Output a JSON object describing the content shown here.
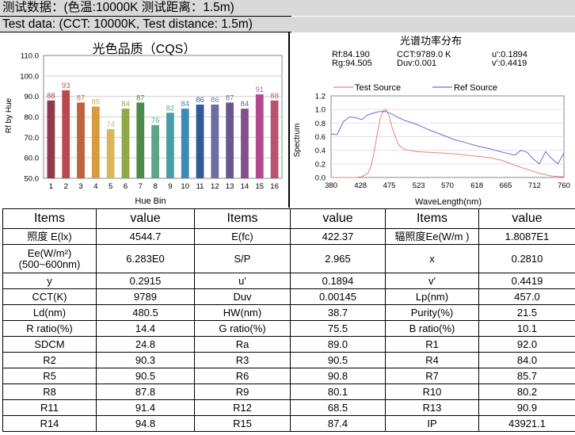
{
  "header": {
    "line1": "测试数据：(色温:10000K 测试距离：1.5m)",
    "line2": "Test data: (CCT: 10000K, Test distance: 1.5m)"
  },
  "cqs_chart": {
    "title": "光色品质（CQS）",
    "ylabel": "Rf by Hue",
    "xlabel": "Hue Bin",
    "chart_data": {
      "type": "bar",
      "categories": [
        "1",
        "2",
        "3",
        "4",
        "5",
        "6",
        "7",
        "8",
        "9",
        "10",
        "11",
        "12",
        "13",
        "14",
        "15",
        "16"
      ],
      "values": [
        88,
        93,
        87,
        85,
        74,
        84,
        87,
        76,
        82,
        84,
        86,
        86,
        87,
        84,
        91,
        88
      ],
      "ylim": [
        50,
        110
      ],
      "yticks": [
        "50.0",
        "60.0",
        "70.0",
        "80.0",
        "90.0",
        "100.0",
        "110.0"
      ],
      "colors": [
        "#8e3a4c",
        "#b84a4f",
        "#c0623e",
        "#d99a3c",
        "#d9b75a",
        "#8fa84a",
        "#4e8a4c",
        "#5ea487",
        "#4c9ca8",
        "#3e8ab7",
        "#335a98",
        "#6d6da3",
        "#67578f",
        "#864e8c",
        "#b4498f",
        "#b7536e"
      ],
      "label_colors": [
        "#b04a4a",
        "#d9533a",
        "#c8713f",
        "#e8a33a",
        "#d9b05a",
        "#8fa84a",
        "#4e8a4c",
        "#5ea487",
        "#4ca3b2",
        "#3e8ab7",
        "#3364a8",
        "#6d7aa8",
        "#6e6aa6",
        "#864e8c",
        "#c35aa8",
        "#c25a7e"
      ]
    }
  },
  "spectrum_chart": {
    "title": "光谱功率分布",
    "stats": {
      "rf": "Rf:84.190",
      "cct": "CCT:9789.0 K",
      "u": "u':0.1894",
      "rg": "Rg:94.505",
      "duv": "Duv:0.001",
      "v": "v':0.4419"
    },
    "ylabel": "Spectrum",
    "xlabel": "WaveLength(nm)",
    "legend_test": "Test Source",
    "legend_ref": "Ref Source",
    "test_color": "#e8827e",
    "ref_color": "#6a6ae0",
    "chart_data": {
      "type": "line",
      "xticks": [
        380,
        428,
        475,
        523,
        570,
        618,
        665,
        712,
        760
      ],
      "yticks": [
        0.0,
        0.2,
        0.4,
        0.6,
        0.8,
        1.0,
        1.2
      ],
      "xlim": [
        380,
        760
      ],
      "ylim": [
        0,
        1.2
      ],
      "series": [
        {
          "name": "Test Source",
          "x": [
            380,
            400,
            420,
            430,
            440,
            445,
            450,
            455,
            460,
            465,
            470,
            475,
            480,
            490,
            500,
            520,
            540,
            560,
            580,
            600,
            620,
            640,
            660,
            680,
            700,
            720,
            740,
            760
          ],
          "y": [
            0,
            0,
            0,
            0.01,
            0.06,
            0.16,
            0.36,
            0.62,
            0.86,
            0.98,
            1.0,
            0.9,
            0.72,
            0.48,
            0.41,
            0.38,
            0.37,
            0.36,
            0.35,
            0.33,
            0.31,
            0.29,
            0.25,
            0.18,
            0.12,
            0.06,
            0.02,
            0.01
          ]
        },
        {
          "name": "Ref Source",
          "x": [
            380,
            390,
            400,
            410,
            420,
            430,
            440,
            450,
            460,
            470,
            480,
            490,
            500,
            520,
            540,
            560,
            580,
            600,
            620,
            640,
            660,
            680,
            690,
            700,
            710,
            720,
            730,
            740,
            750,
            760
          ],
          "y": [
            0.64,
            0.63,
            0.82,
            0.89,
            0.88,
            0.85,
            0.92,
            0.95,
            0.97,
            0.97,
            0.93,
            0.88,
            0.84,
            0.78,
            0.7,
            0.63,
            0.56,
            0.51,
            0.46,
            0.42,
            0.37,
            0.33,
            0.4,
            0.37,
            0.27,
            0.2,
            0.38,
            0.28,
            0.2,
            0.36
          ]
        }
      ]
    }
  },
  "table": {
    "headers": [
      "Items",
      "value",
      "Items",
      "value",
      "Items",
      "value"
    ],
    "rows": [
      [
        "照度 E(lx)",
        "4544.7",
        "E(fc)",
        "422.37",
        "辐照度Ee(W/m  )",
        "1.8087E1"
      ],
      [
        "Ee(W/m²)(500~600nm)",
        "6.283E0",
        "S/P",
        "2.965",
        "x",
        "0.2810"
      ],
      [
        "y",
        "0.2915",
        "u'",
        "0.1894",
        "v'",
        "0.4419"
      ],
      [
        "CCT(K)",
        "9789",
        "Duv",
        "0.00145",
        "Lp(nm)",
        "457.0"
      ],
      [
        "Ld(nm)",
        "480.5",
        "HW(nm)",
        "38.7",
        "Purity(%)",
        "21.5"
      ],
      [
        "R ratio(%)",
        "14.4",
        "G ratio(%)",
        "75.5",
        "B ratio(%)",
        "10.1"
      ],
      [
        "SDCM",
        "24.8",
        "Ra",
        "89.0",
        "R1",
        "92.0"
      ],
      [
        "R2",
        "90.3",
        "R3",
        "90.5",
        "R4",
        "84.0"
      ],
      [
        "R5",
        "90.5",
        "R6",
        "90.8",
        "R7",
        "85.7"
      ],
      [
        "R8",
        "87.8",
        "R9",
        "80.1",
        "R10",
        "80.2"
      ],
      [
        "R11",
        "91.4",
        "R12",
        "68.5",
        "R13",
        "90.9"
      ],
      [
        "R14",
        "94.8",
        "R15",
        "87.4",
        "IP",
        "43921.1"
      ]
    ]
  }
}
